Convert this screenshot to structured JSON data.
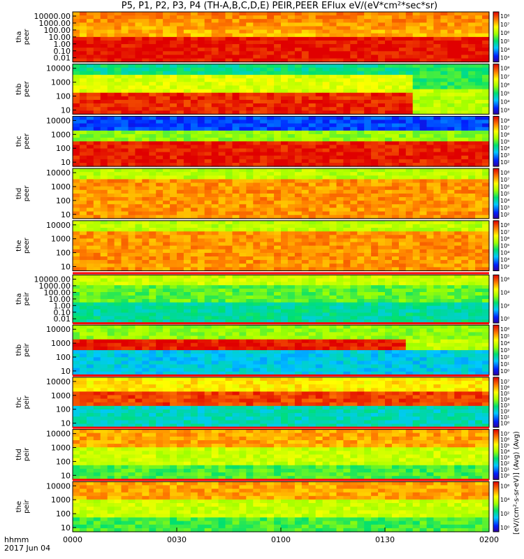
{
  "title": "P5, P1, P2, P3, P4 (TH-A,B,C,D,E) PEIR,PEER EFlux eV/(eV*cm²*sec*sr)",
  "footer": {
    "time_label": "hhmm",
    "date_label": "2017 Jun 04"
  },
  "colors": {
    "frame": "#000000",
    "gap_red": "#ff0000"
  },
  "chart_data": {
    "type": "heatmap",
    "x_ticks": [
      "0000",
      "0030",
      "0100",
      "0130",
      "0200"
    ],
    "xlim": [
      "0000",
      "0200"
    ],
    "colorbar_label": "[eV/(cm²-s-sr-eV)] (Avg) (Avg)",
    "panels": [
      {
        "probe": "tha",
        "species": "peer",
        "ylabel": [
          "tha",
          "peer"
        ],
        "y_ticks": [
          "10000.00",
          "1000.00",
          "100.00",
          "10.00",
          "1.00",
          "0.10",
          "0.01"
        ],
        "colorbar_ticks": [
          "10⁸",
          "10⁷",
          "10⁶",
          "10⁵",
          "10⁴",
          "10³"
        ]
      },
      {
        "probe": "thb",
        "species": "peer",
        "ylabel": [
          "thb",
          "peer"
        ],
        "y_ticks": [
          "10000",
          "1000",
          "100",
          "10"
        ],
        "colorbar_ticks": [
          "10⁸",
          "10⁷",
          "10⁶",
          "10⁵",
          "10⁴",
          "10³"
        ]
      },
      {
        "probe": "thc",
        "species": "peer",
        "ylabel": [
          "thc",
          "peer"
        ],
        "y_ticks": [
          "10000",
          "1000",
          "100",
          "10"
        ],
        "colorbar_ticks": [
          "10⁸",
          "10⁷",
          "10⁶",
          "10⁵",
          "10⁴",
          "10³",
          "10²"
        ]
      },
      {
        "probe": "thd",
        "species": "peer",
        "ylabel": [
          "thd",
          "peer"
        ],
        "y_ticks": [
          "10000",
          "1000",
          "100",
          "10"
        ],
        "colorbar_ticks": [
          "10⁸",
          "10⁷",
          "10⁶",
          "10⁵",
          "10⁴",
          "10³",
          "10²"
        ]
      },
      {
        "probe": "the",
        "species": "peer",
        "ylabel": [
          "the",
          "peer"
        ],
        "y_ticks": [
          "10000",
          "1000",
          "100",
          "10"
        ],
        "colorbar_ticks": [
          "10⁸",
          "10⁷",
          "10⁶",
          "10⁵",
          "10⁴",
          "10³",
          "10²"
        ]
      },
      {
        "probe": "tha",
        "species": "peir",
        "ylabel": [
          "tha",
          "peir"
        ],
        "y_ticks": [
          "10000.00",
          "1000.00",
          "100.00",
          "10.00",
          "1.00",
          "0.10",
          "0.01"
        ],
        "colorbar_ticks": [
          "10⁶",
          "10⁴",
          "10²",
          "10⁰"
        ]
      },
      {
        "probe": "thb",
        "species": "peir",
        "ylabel": [
          "thb",
          "peir"
        ],
        "y_ticks": [
          "10000",
          "1000",
          "100",
          "10"
        ],
        "colorbar_ticks": [
          "10⁶",
          "10⁵",
          "10⁴",
          "10³",
          "10²",
          "10¹",
          "10⁰"
        ]
      },
      {
        "probe": "thc",
        "species": "peir",
        "ylabel": [
          "thc",
          "peir"
        ],
        "y_ticks": [
          "10000",
          "1000",
          "100",
          "10"
        ],
        "colorbar_ticks": [
          "10⁷",
          "10⁶",
          "10⁵",
          "10⁴",
          "10³",
          "10²",
          "10¹",
          "10⁰"
        ]
      },
      {
        "probe": "thd",
        "species": "peir",
        "ylabel": [
          "thd",
          "peir"
        ],
        "y_ticks": [
          "10000",
          "1000",
          "100",
          "10"
        ],
        "colorbar_ticks": [
          "10⁷",
          "10⁶",
          "10⁵",
          "10⁴",
          "10³",
          "10²",
          "10¹",
          "10⁰"
        ]
      },
      {
        "probe": "the",
        "species": "peir",
        "ylabel": [
          "the",
          "peir"
        ],
        "y_ticks": [
          "10000",
          "1000",
          "100",
          "10"
        ],
        "colorbar_ticks": [
          "10⁶",
          "10⁴",
          "10²",
          "10⁰"
        ]
      }
    ]
  }
}
